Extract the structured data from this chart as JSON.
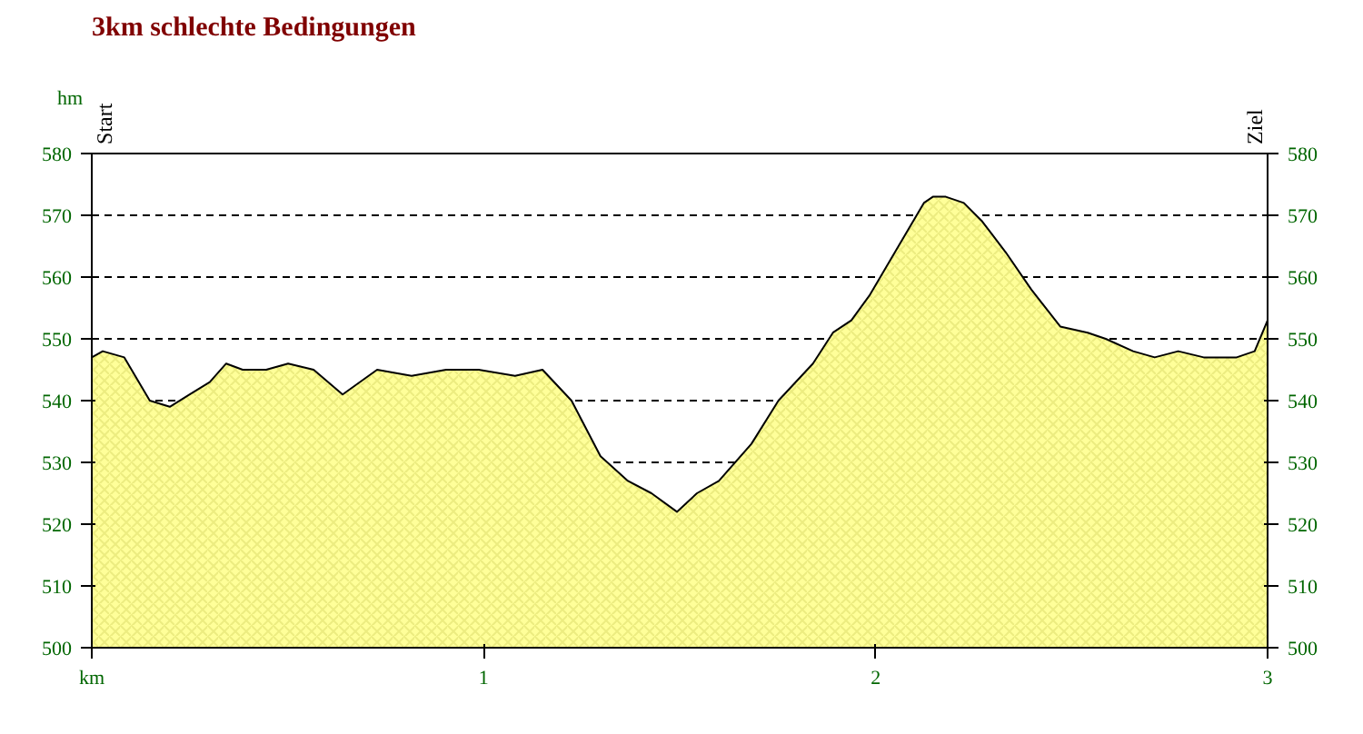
{
  "chart_data": {
    "type": "area",
    "title": "3km schlechte Bedingungen",
    "ylabel": "hm",
    "annotations": [
      "Start",
      "Ziel"
    ],
    "x": [
      0,
      0.028,
      0.083,
      0.148,
      0.199,
      0.25,
      0.301,
      0.343,
      0.385,
      0.445,
      0.501,
      0.566,
      0.64,
      0.728,
      0.816,
      0.904,
      0.987,
      1.08,
      1.15,
      1.224,
      1.298,
      1.368,
      1.428,
      1.493,
      1.544,
      1.6,
      1.683,
      1.752,
      1.84,
      1.891,
      1.938,
      1.984,
      2.049,
      2.123,
      2.146,
      2.179,
      2.225,
      2.272,
      2.332,
      2.397,
      2.471,
      2.541,
      2.587,
      2.657,
      2.712,
      2.772,
      2.837,
      2.921,
      2.967,
      3
    ],
    "series": [
      {
        "color": "#ffff99",
        "values": [
          547,
          548,
          547,
          540,
          539,
          541,
          543,
          546,
          545,
          545,
          546,
          545,
          541,
          545,
          544,
          545,
          545,
          544,
          545,
          540,
          531,
          527,
          525,
          522,
          525,
          527,
          533,
          540,
          546,
          551,
          553,
          557,
          564,
          572,
          573,
          573,
          572,
          569,
          564,
          558,
          552,
          551,
          550,
          548,
          547,
          548,
          547,
          547,
          548,
          553
        ]
      }
    ],
    "xlim": [
      0,
      3
    ],
    "xticks": [
      {
        "value": 0,
        "label": "km"
      },
      1,
      2,
      3
    ],
    "ylim": [
      500,
      580
    ],
    "yticks": [
      500,
      510,
      520,
      530,
      540,
      550,
      560,
      570,
      580
    ],
    "y2lim": [
      500,
      580
    ],
    "y2ticks": [
      500,
      510,
      520,
      530,
      540,
      550,
      560,
      570,
      580
    ],
    "grid": "y"
  }
}
